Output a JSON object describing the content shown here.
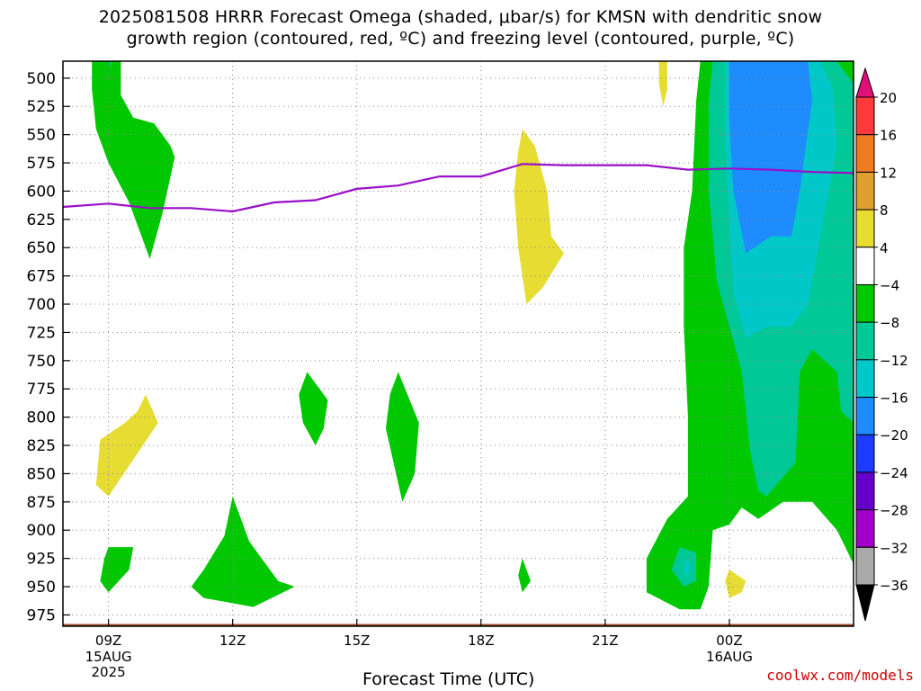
{
  "title": {
    "line1": "2025081508 HRRR Forecast Omega (shaded, μbar/s) for KMSN with dendritic snow",
    "line2": "growth region (contoured, red, ºC) and freezing level (contoured, purple, ºC)"
  },
  "credit": "coolwx.com/models",
  "chart_data": {
    "type": "heatmap",
    "title": "2025081508 HRRR Forecast Omega (shaded, μbar/s) for KMSN with dendritic snow growth region (contoured, red, ºC) and freezing level (contoured, purple, ºC)",
    "xlabel": "Forecast Time (UTC)",
    "ylabel": "",
    "x_range_hours": [
      7.9,
      27.0
    ],
    "y_range_hPa": [
      985,
      485
    ],
    "y_ticks": [
      500,
      525,
      550,
      575,
      600,
      625,
      650,
      675,
      700,
      725,
      750,
      775,
      800,
      825,
      850,
      875,
      900,
      925,
      950,
      975
    ],
    "x_ticks": [
      {
        "label": "09Z",
        "hour": 9
      },
      {
        "label": "12Z",
        "hour": 12
      },
      {
        "label": "15Z",
        "hour": 15
      },
      {
        "label": "18Z",
        "hour": 18
      },
      {
        "label": "21Z",
        "hour": 21
      },
      {
        "label": "00Z",
        "hour": 24
      }
    ],
    "date_labels": [
      {
        "text": "15AUG",
        "hour": 9
      },
      {
        "text": "2025",
        "hour": 9
      },
      {
        "text": "16AUG",
        "hour": 24
      }
    ],
    "colorbar": {
      "labels": [
        "20",
        "16",
        "12",
        "8",
        "4",
        "−4",
        "−8",
        "−12",
        "−16",
        "−20",
        "−24",
        "−28",
        "−32",
        "−36"
      ],
      "bins": [
        {
          "from": 20,
          "to": 24,
          "color": "#e0107a"
        },
        {
          "from": 16,
          "to": 20,
          "color": "#ff3a3a"
        },
        {
          "from": 12,
          "to": 16,
          "color": "#f07a20"
        },
        {
          "from": 8,
          "to": 12,
          "color": "#e0a030"
        },
        {
          "from": 4,
          "to": 8,
          "color": "#e6dc32"
        },
        {
          "from": -4,
          "to": 4,
          "color": "#ffffff"
        },
        {
          "from": -8,
          "to": -4,
          "color": "#00c800"
        },
        {
          "from": -12,
          "to": -8,
          "color": "#00c896"
        },
        {
          "from": -16,
          "to": -12,
          "color": "#00c8c8"
        },
        {
          "from": -20,
          "to": -16,
          "color": "#1e8cff"
        },
        {
          "from": -24,
          "to": -20,
          "color": "#1e3cff"
        },
        {
          "from": -28,
          "to": -24,
          "color": "#6400c8"
        },
        {
          "from": -32,
          "to": -28,
          "color": "#a000c8"
        },
        {
          "from": -36,
          "to": -32,
          "color": "#aaaaaa"
        },
        {
          "from": -40,
          "to": -36,
          "color": "#000000"
        }
      ]
    },
    "freezing_level": {
      "color": "#9a0fc8",
      "points": [
        {
          "hour": 7.9,
          "hPa": 614
        },
        {
          "hour": 9.0,
          "hPa": 611
        },
        {
          "hour": 10.0,
          "hPa": 615
        },
        {
          "hour": 11.0,
          "hPa": 615
        },
        {
          "hour": 12.0,
          "hPa": 618
        },
        {
          "hour": 13.0,
          "hPa": 610
        },
        {
          "hour": 14.0,
          "hPa": 608
        },
        {
          "hour": 15.0,
          "hPa": 598
        },
        {
          "hour": 16.0,
          "hPa": 595
        },
        {
          "hour": 17.0,
          "hPa": 587
        },
        {
          "hour": 18.0,
          "hPa": 587
        },
        {
          "hour": 19.0,
          "hPa": 576
        },
        {
          "hour": 20.0,
          "hPa": 577
        },
        {
          "hour": 21.0,
          "hPa": 577
        },
        {
          "hour": 22.0,
          "hPa": 577
        },
        {
          "hour": 23.0,
          "hPa": 581
        },
        {
          "hour": 24.0,
          "hPa": 580
        },
        {
          "hour": 25.0,
          "hPa": 581
        },
        {
          "hour": 26.0,
          "hPa": 583
        },
        {
          "hour": 27.0,
          "hPa": 584
        }
      ]
    },
    "surface_band": {
      "color": "#a0522d",
      "hPa": [
        983,
        979
      ]
    },
    "omega_regions": [
      {
        "fill": "#00c800",
        "points": [
          [
            8.6,
            485
          ],
          [
            9.3,
            485
          ],
          [
            9.3,
            515
          ],
          [
            9.6,
            535
          ],
          [
            10.1,
            540
          ],
          [
            10.5,
            560
          ],
          [
            10.6,
            570
          ],
          [
            10.3,
            620
          ],
          [
            10.0,
            660
          ],
          [
            9.5,
            610
          ],
          [
            9.0,
            575
          ],
          [
            8.7,
            545
          ],
          [
            8.6,
            510
          ]
        ]
      },
      {
        "fill": "#00c896",
        "points": [
          [
            9.0,
            485
          ],
          [
            9.1,
            485
          ],
          [
            9.06,
            490
          ]
        ]
      },
      {
        "fill": "#e6dc32",
        "points": [
          [
            9.9,
            780
          ],
          [
            10.2,
            805
          ],
          [
            9.0,
            870
          ],
          [
            8.7,
            860
          ],
          [
            8.8,
            820
          ],
          [
            9.4,
            805
          ],
          [
            9.7,
            795
          ]
        ]
      },
      {
        "fill": "#00c800",
        "points": [
          [
            9.0,
            915
          ],
          [
            9.6,
            915
          ],
          [
            9.5,
            935
          ],
          [
            9.0,
            955
          ],
          [
            8.8,
            945
          ],
          [
            8.9,
            925
          ]
        ]
      },
      {
        "fill": "#00c800",
        "points": [
          [
            12.0,
            870
          ],
          [
            12.4,
            910
          ],
          [
            13.1,
            945
          ],
          [
            13.5,
            950
          ],
          [
            12.5,
            968
          ],
          [
            11.3,
            960
          ],
          [
            11.0,
            950
          ],
          [
            11.3,
            935
          ],
          [
            11.8,
            905
          ]
        ]
      },
      {
        "fill": "#00c800",
        "points": [
          [
            13.8,
            760
          ],
          [
            14.3,
            785
          ],
          [
            14.2,
            810
          ],
          [
            14.0,
            825
          ],
          [
            13.7,
            805
          ],
          [
            13.6,
            780
          ]
        ]
      },
      {
        "fill": "#00c800",
        "points": [
          [
            16.0,
            760
          ],
          [
            16.5,
            805
          ],
          [
            16.4,
            850
          ],
          [
            16.1,
            875
          ],
          [
            15.7,
            810
          ],
          [
            15.8,
            780
          ]
        ]
      },
      {
        "fill": "#00c800",
        "points": [
          [
            19.0,
            925
          ],
          [
            19.2,
            945
          ],
          [
            19.0,
            955
          ],
          [
            18.9,
            940
          ]
        ]
      },
      {
        "fill": "#e6dc32",
        "points": [
          [
            19.0,
            545
          ],
          [
            19.3,
            560
          ],
          [
            19.6,
            600
          ],
          [
            19.7,
            640
          ],
          [
            20.0,
            655
          ],
          [
            19.5,
            685
          ],
          [
            19.1,
            700
          ],
          [
            18.9,
            650
          ],
          [
            18.8,
            600
          ],
          [
            18.9,
            565
          ]
        ]
      },
      {
        "fill": "#e6dc32",
        "points": [
          [
            22.3,
            485
          ],
          [
            22.5,
            485
          ],
          [
            22.5,
            510
          ],
          [
            22.4,
            525
          ],
          [
            22.3,
            505
          ]
        ]
      },
      {
        "fill": "#00c800",
        "points": [
          [
            23.3,
            485
          ],
          [
            27.0,
            485
          ],
          [
            27.0,
            930
          ],
          [
            26.6,
            900
          ],
          [
            26.0,
            875
          ],
          [
            25.3,
            875
          ],
          [
            24.7,
            890
          ],
          [
            24.3,
            880
          ],
          [
            24.0,
            895
          ],
          [
            23.6,
            900
          ],
          [
            23.5,
            950
          ],
          [
            23.3,
            970
          ],
          [
            22.8,
            970
          ],
          [
            22.0,
            955
          ],
          [
            22.0,
            925
          ],
          [
            22.5,
            890
          ],
          [
            23.0,
            870
          ],
          [
            23.0,
            800
          ],
          [
            22.9,
            720
          ],
          [
            22.9,
            650
          ],
          [
            23.1,
            600
          ],
          [
            23.2,
            520
          ]
        ]
      },
      {
        "fill": "#00c896",
        "points": [
          [
            23.6,
            485
          ],
          [
            26.6,
            485
          ],
          [
            27.0,
            505
          ],
          [
            27.0,
            805
          ],
          [
            26.7,
            795
          ],
          [
            26.6,
            760
          ],
          [
            26.0,
            740
          ],
          [
            25.7,
            760
          ],
          [
            25.6,
            840
          ],
          [
            24.9,
            870
          ],
          [
            24.7,
            865
          ],
          [
            24.5,
            830
          ],
          [
            24.3,
            760
          ],
          [
            23.7,
            680
          ],
          [
            23.5,
            600
          ],
          [
            23.5,
            520
          ]
        ]
      },
      {
        "fill": "#00c8c8",
        "points": [
          [
            23.9,
            485
          ],
          [
            26.2,
            485
          ],
          [
            26.5,
            510
          ],
          [
            26.6,
            560
          ],
          [
            26.2,
            640
          ],
          [
            25.9,
            700
          ],
          [
            25.5,
            720
          ],
          [
            24.9,
            720
          ],
          [
            24.4,
            730
          ],
          [
            24.1,
            690
          ],
          [
            24.0,
            630
          ],
          [
            23.9,
            560
          ]
        ]
      },
      {
        "fill": "#1e8cff",
        "points": [
          [
            24.0,
            485
          ],
          [
            25.9,
            485
          ],
          [
            26.0,
            520
          ],
          [
            25.7,
            600
          ],
          [
            25.5,
            640
          ],
          [
            25.0,
            640
          ],
          [
            24.4,
            655
          ],
          [
            24.1,
            600
          ],
          [
            24.0,
            540
          ]
        ]
      },
      {
        "fill": "#00c896",
        "points": [
          [
            22.8,
            915
          ],
          [
            23.2,
            920
          ],
          [
            23.2,
            945
          ],
          [
            22.9,
            950
          ],
          [
            22.6,
            935
          ]
        ]
      },
      {
        "fill": "#00c8c8",
        "points": [
          [
            22.95,
            925
          ],
          [
            23.05,
            930
          ],
          [
            23.0,
            942
          ],
          [
            22.9,
            935
          ]
        ]
      },
      {
        "fill": "#e6dc32",
        "points": [
          [
            24.0,
            935
          ],
          [
            24.4,
            945
          ],
          [
            24.3,
            955
          ],
          [
            24.0,
            960
          ],
          [
            23.9,
            945
          ]
        ]
      }
    ]
  }
}
